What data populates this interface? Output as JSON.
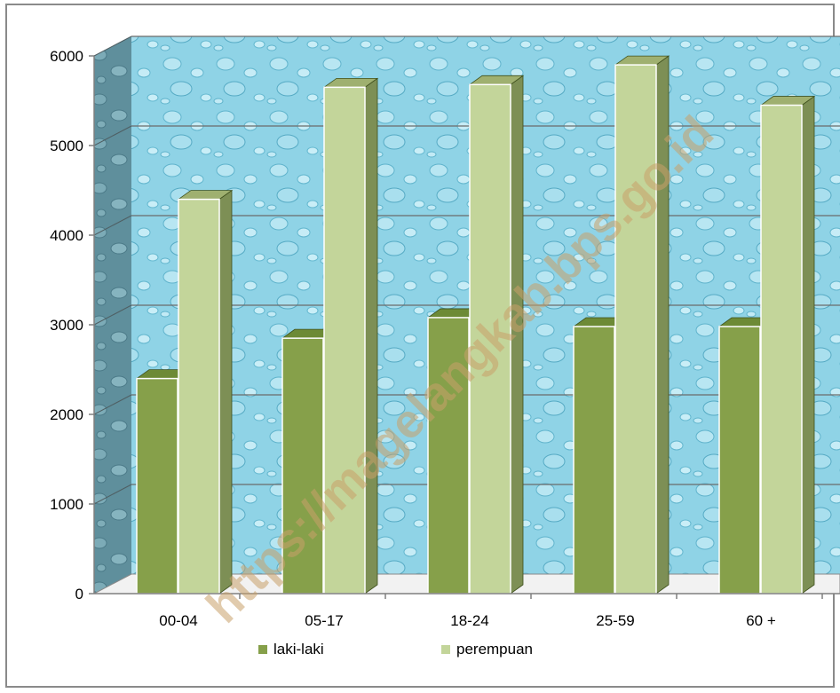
{
  "chart_data": {
    "type": "bar",
    "categories": [
      "00-04",
      "05-17",
      "18-24",
      "25-59",
      "60 +"
    ],
    "series": [
      {
        "name": "laki-laki",
        "values": [
          2400,
          2850,
          3080,
          2980,
          2980
        ],
        "color": "#86a04a"
      },
      {
        "name": "perempuan",
        "values": [
          4400,
          5650,
          5680,
          5900,
          5450
        ],
        "color": "#c3d59a"
      }
    ],
    "y_ticks": [
      "0",
      "1000",
      "2000",
      "3000",
      "4000",
      "5000",
      "6000"
    ],
    "ylim": [
      0,
      6000
    ],
    "grid": true,
    "legend_position": "bottom",
    "watermark": "https://magelangkab.bps.go.id"
  }
}
